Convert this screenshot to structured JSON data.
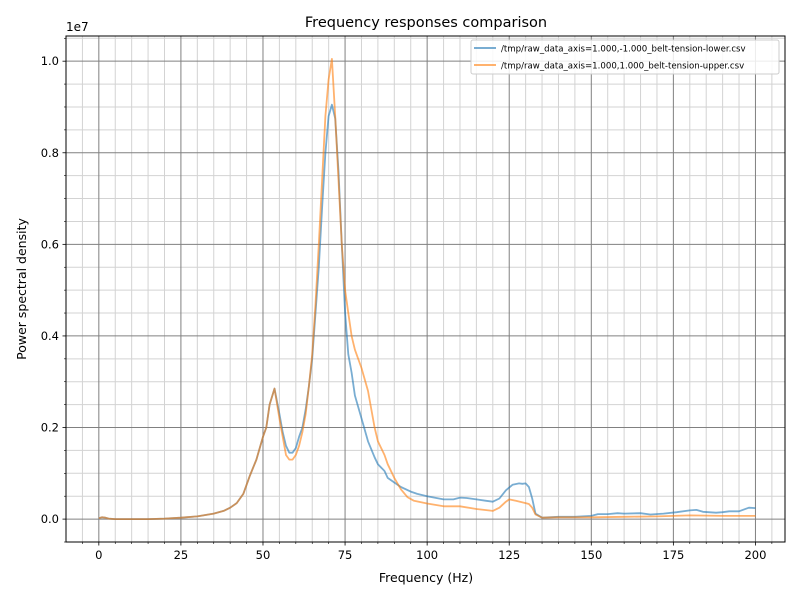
{
  "chart_data": {
    "type": "line",
    "title": "Frequency responses comparison",
    "xlabel": "Frequency (Hz)",
    "ylabel": "Power spectral density",
    "y_scale_label": "1e7",
    "xlim": [
      -10,
      209
    ],
    "ylim": [
      -0.05,
      1.055
    ],
    "y_units": "x1e7",
    "xticks": [
      0,
      25,
      50,
      75,
      100,
      125,
      150,
      175,
      200
    ],
    "yticks": [
      0.0,
      0.2,
      0.4,
      0.6,
      0.8,
      1.0
    ],
    "grid": {
      "major": true,
      "minor": true
    },
    "legend_position": "top-right",
    "series": [
      {
        "name": "/tmp/raw_data_axis=1.000,-1.000_belt-tension-lower.csv",
        "color": "#1f77b4",
        "x": [
          0,
          1,
          2,
          3,
          5,
          10,
          15,
          20,
          25,
          30,
          35,
          38,
          40,
          42,
          44,
          46,
          48,
          50,
          51,
          52,
          53.5,
          55,
          56,
          57,
          58,
          59,
          60,
          61,
          62,
          63,
          64,
          65,
          66,
          67,
          68,
          69,
          70,
          71,
          72,
          73,
          74,
          75,
          76,
          77,
          78,
          80,
          82,
          84,
          85,
          87,
          88,
          90,
          92,
          95,
          97,
          100,
          105,
          108,
          110,
          112,
          115,
          118,
          120,
          122,
          124,
          126,
          128,
          129,
          130,
          131,
          132,
          133,
          135,
          140,
          145,
          150,
          152,
          155,
          158,
          160,
          165,
          168,
          172,
          176,
          180,
          182,
          184,
          188,
          190,
          192,
          195,
          198,
          200
        ],
        "y": [
          0.002,
          0.004,
          0.003,
          0.001,
          0,
          0,
          0,
          0.001,
          0.003,
          0.006,
          0.012,
          0.018,
          0.025,
          0.035,
          0.055,
          0.095,
          0.13,
          0.18,
          0.2,
          0.25,
          0.285,
          0.23,
          0.19,
          0.16,
          0.145,
          0.145,
          0.155,
          0.18,
          0.2,
          0.24,
          0.29,
          0.35,
          0.45,
          0.55,
          0.68,
          0.8,
          0.88,
          0.905,
          0.875,
          0.76,
          0.6,
          0.45,
          0.36,
          0.32,
          0.27,
          0.22,
          0.17,
          0.135,
          0.12,
          0.105,
          0.09,
          0.08,
          0.07,
          0.06,
          0.055,
          0.05,
          0.043,
          0.043,
          0.047,
          0.046,
          0.043,
          0.04,
          0.038,
          0.045,
          0.063,
          0.075,
          0.078,
          0.077,
          0.078,
          0.07,
          0.045,
          0.012,
          0.003,
          0.005,
          0.005,
          0.007,
          0.011,
          0.011,
          0.013,
          0.012,
          0.013,
          0.01,
          0.012,
          0.015,
          0.019,
          0.02,
          0.016,
          0.014,
          0.015,
          0.017,
          0.017,
          0.025,
          0.024
        ]
      },
      {
        "name": "/tmp/raw_data_axis=1.000,1.000_belt-tension-upper.csv",
        "color": "#ff7f0e",
        "x": [
          0,
          1,
          2,
          3,
          5,
          10,
          15,
          20,
          25,
          30,
          35,
          38,
          40,
          42,
          44,
          46,
          48,
          50,
          51,
          52,
          53.5,
          55,
          56,
          57,
          58,
          59,
          60,
          61,
          62,
          63,
          64,
          65,
          66,
          67,
          68,
          69,
          70,
          71,
          72,
          73,
          74,
          75,
          76,
          77,
          78,
          80,
          82,
          84,
          85,
          87,
          88,
          90,
          92,
          94,
          96,
          100,
          105,
          108,
          110,
          115,
          120,
          122,
          124,
          125,
          127,
          130,
          131,
          132,
          133,
          135,
          140,
          150,
          160,
          170,
          180,
          190,
          200
        ],
        "y": [
          0.002,
          0.004,
          0.003,
          0.001,
          0,
          0,
          0,
          0.001,
          0.003,
          0.006,
          0.012,
          0.018,
          0.025,
          0.035,
          0.055,
          0.095,
          0.13,
          0.18,
          0.2,
          0.25,
          0.285,
          0.22,
          0.18,
          0.14,
          0.13,
          0.13,
          0.14,
          0.16,
          0.19,
          0.23,
          0.29,
          0.36,
          0.47,
          0.6,
          0.74,
          0.88,
          0.96,
          1.005,
          0.88,
          0.74,
          0.6,
          0.5,
          0.45,
          0.4,
          0.37,
          0.33,
          0.28,
          0.2,
          0.17,
          0.14,
          0.12,
          0.09,
          0.065,
          0.048,
          0.04,
          0.034,
          0.028,
          0.028,
          0.028,
          0.022,
          0.018,
          0.025,
          0.038,
          0.043,
          0.04,
          0.035,
          0.033,
          0.025,
          0.01,
          0.003,
          0.004,
          0.004,
          0.005,
          0.006,
          0.008,
          0.007,
          0.007
        ]
      }
    ]
  }
}
